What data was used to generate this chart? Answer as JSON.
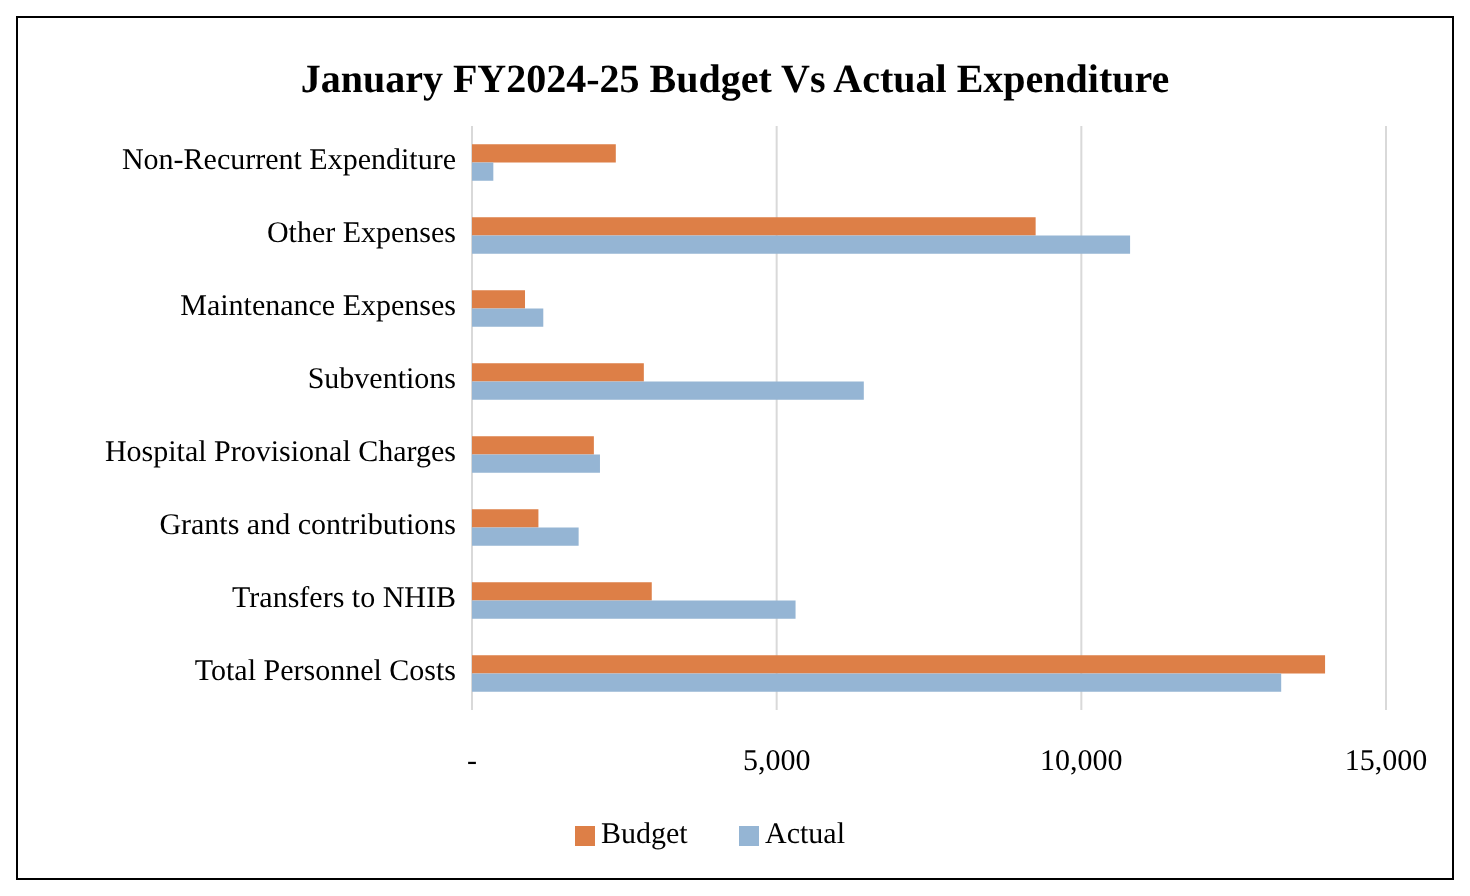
{
  "chart_data": {
    "type": "bar",
    "orientation": "horizontal",
    "title": "January FY2024-25 Budget Vs Actual Expenditure",
    "categories": [
      "Non-Recurrent Expenditure",
      "Other Expenses",
      "Maintenance Expenses",
      "Subventions",
      "Hospital Provisional Charges",
      "Grants and contributions",
      "Transfers to NHIB",
      "Total Personnel Costs"
    ],
    "series": [
      {
        "name": "Budget",
        "color": "#dd7f47",
        "values": [
          2360,
          9250,
          870,
          2820,
          2000,
          1090,
          2950,
          14000
        ]
      },
      {
        "name": "Actual",
        "color": "#95b5d4",
        "values": [
          350,
          10800,
          1170,
          6430,
          2100,
          1750,
          5310,
          13280
        ]
      }
    ],
    "xlim": [
      0,
      15000
    ],
    "xticks": [
      {
        "value": 0,
        "label": "-"
      },
      {
        "value": 5000,
        "label": "5,000"
      },
      {
        "value": 10000,
        "label": "10,000"
      },
      {
        "value": 15000,
        "label": "15,000"
      }
    ],
    "grid": "x",
    "legend": "bottom"
  }
}
